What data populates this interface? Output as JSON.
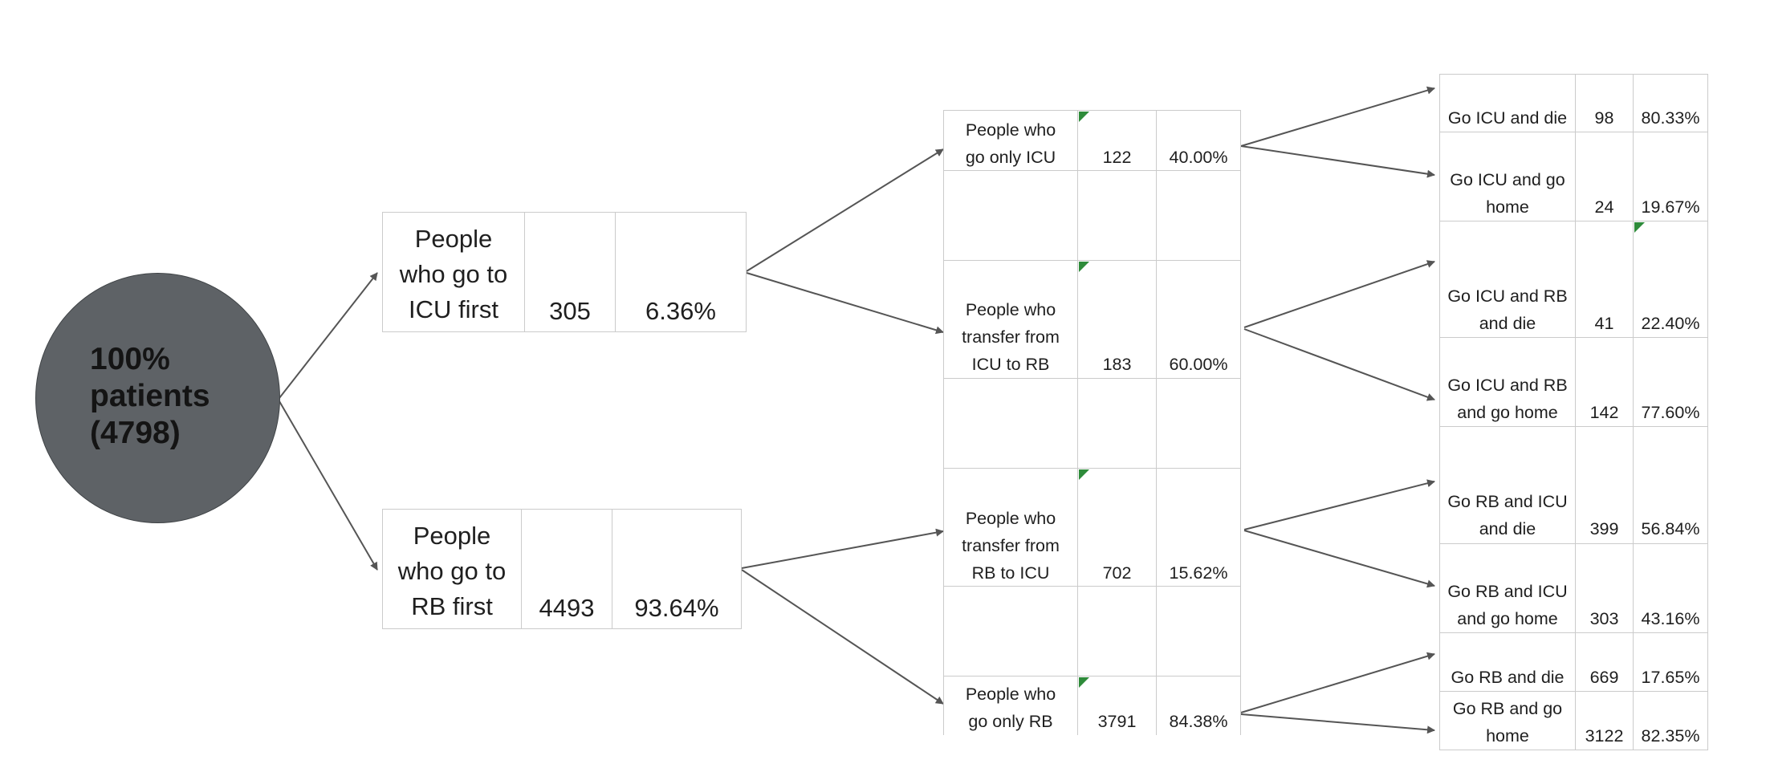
{
  "root": {
    "label": "100%\npatients\n(4798)"
  },
  "level1": [
    {
      "label": "People\nwho go to\nICU first",
      "count": "305",
      "pct": "6.36%"
    },
    {
      "label": "People\nwho go to\nRB first",
      "count": "4493",
      "pct": "93.64%"
    }
  ],
  "level2": [
    {
      "label": "People who\ngo only ICU",
      "count": "122",
      "pct": "40.00%"
    },
    {
      "label": "People who\ntransfer from\nICU to RB",
      "count": "183",
      "pct": "60.00%"
    },
    {
      "label": "People who\ntransfer from\nRB to ICU",
      "count": "702",
      "pct": "15.62%"
    },
    {
      "label": "People who\ngo only RB",
      "count": "3791",
      "pct": "84.38%"
    }
  ],
  "level3": [
    {
      "label": "Go ICU and die",
      "count": "98",
      "pct": "80.33%"
    },
    {
      "label": "Go ICU and go\nhome",
      "count": "24",
      "pct": "19.67%"
    },
    {
      "label": "Go ICU and RB\nand die",
      "count": "41",
      "pct": "22.40%"
    },
    {
      "label": "Go ICU and RB\nand go home",
      "count": "142",
      "pct": "77.60%"
    },
    {
      "label": "Go RB and ICU\nand die",
      "count": "399",
      "pct": "56.84%"
    },
    {
      "label": "Go RB and ICU\nand go home",
      "count": "303",
      "pct": "43.16%"
    },
    {
      "label": "Go RB and die",
      "count": "669",
      "pct": "17.65%"
    },
    {
      "label": "Go RB and go\nhome",
      "count": "3122",
      "pct": "82.35%"
    }
  ],
  "colors": {
    "circle": "#5e6266",
    "arrow": "#555555",
    "grid": "#cbcbcb",
    "flag": "#2e8b3a"
  }
}
